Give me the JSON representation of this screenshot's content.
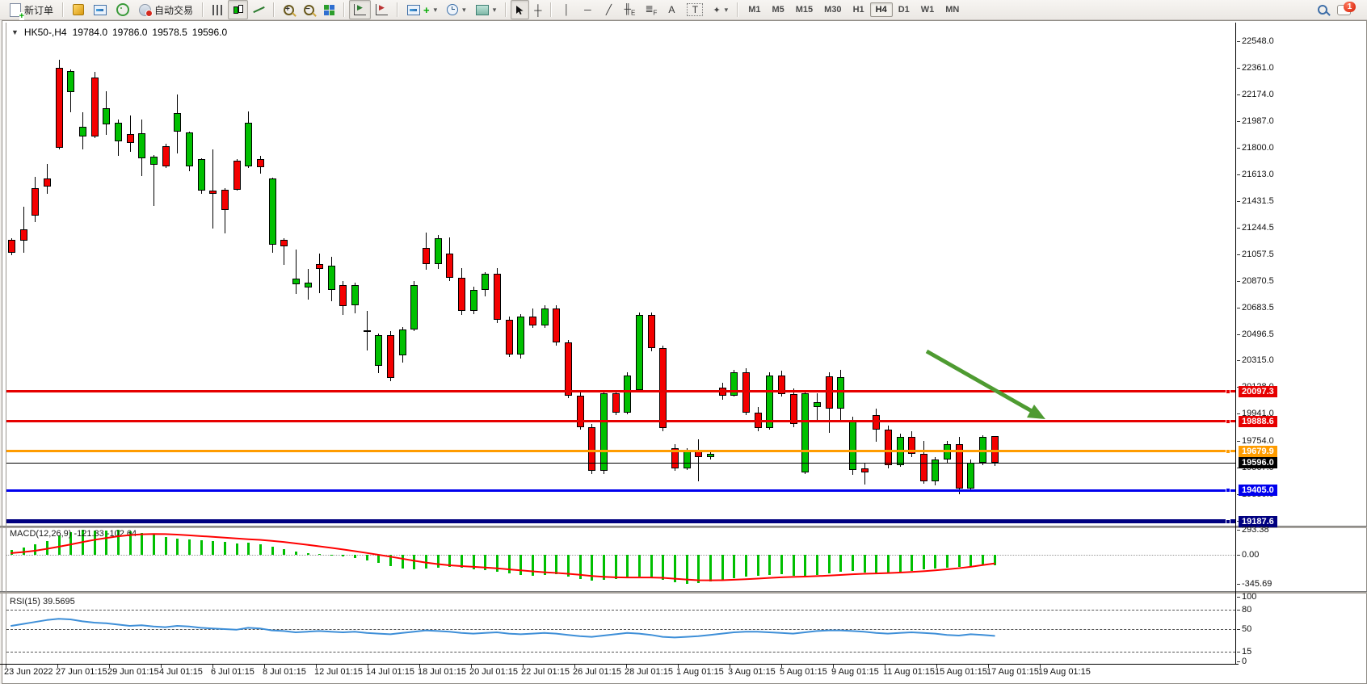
{
  "toolbar": {
    "new_order_label": "新订单",
    "autotrading_label": "自动交易",
    "timeframes": [
      "M1",
      "M5",
      "M15",
      "M30",
      "H1",
      "H4",
      "D1",
      "W1",
      "MN"
    ],
    "active_timeframe": "H4",
    "notification_badge": "1",
    "icons": [
      "new-order",
      "quotes-cube",
      "chart-window",
      "navigator",
      "autotrading-globe",
      "bar-chart-type",
      "candlestick-type",
      "line-chart-type",
      "zoom-in",
      "zoom-out",
      "tile-windows",
      "auto-scroll",
      "chart-shift",
      "add-indicator",
      "periods-clock",
      "templates",
      "cursor",
      "crosshair",
      "vertical-line",
      "horizontal-line",
      "trendline",
      "equidistant-channel",
      "fibonacci",
      "text",
      "text-label",
      "arrows",
      "search",
      "chat"
    ]
  },
  "chart": {
    "collapse_arrow": "▼",
    "symbol_period": "HK50-,H4",
    "open": "19784.0",
    "high": "19786.0",
    "low": "19578.5",
    "close": "19596.0"
  },
  "indicators": {
    "macd_label": "MACD(12,26,9)",
    "macd_value": "-121.33",
    "macd_signal_value": "-102.64",
    "rsi_label": "RSI(15)",
    "rsi_value": "39.5695"
  },
  "chart_data": {
    "type": "candlestick",
    "symbol": "HK50-",
    "period": "H4",
    "ylim": [
      19100,
      22640
    ],
    "grid": false,
    "price_axis_ticks": [
      "22548.0",
      "22361.0",
      "22174.0",
      "21987.0",
      "21800.0",
      "21613.0",
      "21431.5",
      "21244.5",
      "21057.5",
      "20870.5",
      "20683.5",
      "20496.5",
      "20315.0",
      "20128.0",
      "19941.0",
      "19754.0",
      "19567.0",
      "19380.0",
      "19193.0"
    ],
    "date_axis_ticks": [
      "23 Jun 2022",
      "27 Jun 01:15",
      "29 Jun 01:15",
      "4 Jul 01:15",
      "6 Jul 01:15",
      "8 Jul 01:15",
      "12 Jul 01:15",
      "14 Jul 01:15",
      "18 Jul 01:15",
      "20 Jul 01:15",
      "22 Jul 01:15",
      "26 Jul 01:15",
      "28 Jul 01:15",
      "1 Aug 01:15",
      "3 Aug 01:15",
      "5 Aug 01:15",
      "9 Aug 01:15",
      "11 Aug 01:15",
      "15 Aug 01:15",
      "17 Aug 01:15",
      "19 Aug 01:15"
    ],
    "horizontal_lines": [
      {
        "price": 20097.3,
        "label": "20097.3",
        "color": "#e60000",
        "thickness": 3
      },
      {
        "price": 19888.6,
        "label": "19888.6",
        "color": "#e60000",
        "thickness": 3
      },
      {
        "price": 19679.9,
        "label": "19679.9",
        "color": "#ff9c00",
        "thickness": 3
      },
      {
        "price": 19596.0,
        "label": "19596.0",
        "color": "#000000",
        "thickness": 1
      },
      {
        "price": 19405.0,
        "label": "19405.0",
        "color": "#0000ee",
        "thickness": 3
      },
      {
        "price": 19187.6,
        "label": "19187.6",
        "color": "#000080",
        "thickness": 5
      }
    ],
    "trend_arrow": {
      "color": "#4e9b31",
      "from_price": 20380,
      "to_price": 19940,
      "note": "down-sloping arrow over final candles"
    },
    "candles_ohlc": [
      [
        21160,
        21170,
        21050,
        21070
      ],
      [
        21230,
        21390,
        21065,
        21150
      ],
      [
        21520,
        21600,
        21280,
        21330
      ],
      [
        21585,
        21690,
        21480,
        21530
      ],
      [
        22360,
        22420,
        21790,
        21800
      ],
      [
        22190,
        22350,
        22050,
        22340
      ],
      [
        21880,
        22050,
        21790,
        21950
      ],
      [
        22295,
        22335,
        21870,
        21880
      ],
      [
        21965,
        22200,
        21895,
        22080
      ],
      [
        21845,
        22000,
        21745,
        21975
      ],
      [
        21900,
        22030,
        21775,
        21835
      ],
      [
        21730,
        22000,
        21605,
        21905
      ],
      [
        21685,
        21750,
        21395,
        21740
      ],
      [
        21815,
        21830,
        21660,
        21670
      ],
      [
        21915,
        22175,
        21765,
        22045
      ],
      [
        21670,
        21915,
        21640,
        21910
      ],
      [
        21500,
        21730,
        21480,
        21725
      ],
      [
        21505,
        21790,
        21240,
        21480
      ],
      [
        21510,
        21520,
        21205,
        21365
      ],
      [
        21710,
        21725,
        21500,
        21510
      ],
      [
        21670,
        22055,
        21660,
        21975
      ],
      [
        21725,
        21745,
        21620,
        21665
      ],
      [
        21125,
        21595,
        21070,
        21585
      ],
      [
        21160,
        21170,
        20985,
        21115
      ],
      [
        20845,
        21090,
        20780,
        20885
      ],
      [
        20825,
        20955,
        20740,
        20860
      ],
      [
        20990,
        21060,
        20785,
        20955
      ],
      [
        20805,
        21040,
        20730,
        20980
      ],
      [
        20840,
        20870,
        20630,
        20695
      ],
      [
        20700,
        20860,
        20645,
        20840
      ],
      [
        20520,
        20660,
        20385,
        20525
      ],
      [
        20275,
        20500,
        20225,
        20490
      ],
      [
        20490,
        20520,
        20170,
        20190
      ],
      [
        20350,
        20550,
        20300,
        20530
      ],
      [
        20530,
        20870,
        20520,
        20840
      ],
      [
        21100,
        21210,
        20950,
        20990
      ],
      [
        20990,
        21190,
        20955,
        21170
      ],
      [
        21060,
        21175,
        20870,
        20890
      ],
      [
        20890,
        20960,
        20630,
        20660
      ],
      [
        20660,
        20830,
        20640,
        20810
      ],
      [
        20810,
        20930,
        20760,
        20920
      ],
      [
        20920,
        20960,
        20575,
        20600
      ],
      [
        20600,
        20620,
        20340,
        20355
      ],
      [
        20355,
        20640,
        20330,
        20620
      ],
      [
        20620,
        20680,
        20540,
        20560
      ],
      [
        20560,
        20700,
        20545,
        20680
      ],
      [
        20680,
        20700,
        20420,
        20440
      ],
      [
        20440,
        20460,
        20050,
        20070
      ],
      [
        20070,
        20100,
        19830,
        19850
      ],
      [
        19850,
        19870,
        19520,
        19540
      ],
      [
        19540,
        20090,
        19520,
        20085
      ],
      [
        20085,
        20110,
        19930,
        19950
      ],
      [
        19950,
        20230,
        19940,
        20210
      ],
      [
        20110,
        20650,
        20100,
        20630
      ],
      [
        20630,
        20650,
        20380,
        20400
      ],
      [
        20400,
        20420,
        19820,
        19840
      ],
      [
        19700,
        19730,
        19540,
        19560
      ],
      [
        19560,
        19700,
        19545,
        19690
      ],
      [
        19690,
        19760,
        19470,
        19640
      ],
      [
        19640,
        19680,
        19620,
        19660
      ],
      [
        20125,
        20160,
        20040,
        20070
      ],
      [
        20070,
        20250,
        20060,
        20230
      ],
      [
        20230,
        20260,
        19930,
        19950
      ],
      [
        19950,
        19990,
        19820,
        19840
      ],
      [
        19840,
        20230,
        19830,
        20210
      ],
      [
        20210,
        20240,
        20060,
        20080
      ],
      [
        20080,
        20120,
        19850,
        19870
      ],
      [
        19530,
        20095,
        19520,
        20085
      ],
      [
        19990,
        20085,
        19900,
        20025
      ],
      [
        20205,
        20233,
        19805,
        19980
      ],
      [
        19980,
        20250,
        19880,
        20195
      ],
      [
        19545,
        19920,
        19515,
        19890
      ],
      [
        19560,
        19600,
        19445,
        19530
      ],
      [
        19930,
        19975,
        19745,
        19830
      ],
      [
        19830,
        19860,
        19560,
        19580
      ],
      [
        19580,
        19800,
        19570,
        19780
      ],
      [
        19780,
        19820,
        19640,
        19660
      ],
      [
        19660,
        19750,
        19450,
        19470
      ],
      [
        19470,
        19640,
        19440,
        19620
      ],
      [
        19620,
        19750,
        19600,
        19730
      ],
      [
        19730,
        19780,
        19380,
        19420
      ],
      [
        19420,
        19620,
        19400,
        19600
      ],
      [
        19600,
        19790,
        19580,
        19780
      ],
      [
        19784,
        19786,
        19578.5,
        19596
      ]
    ],
    "macd": {
      "params": "12,26,9",
      "axis_ticks": [
        "293.38",
        "0.00",
        "-345.69"
      ],
      "histogram": [
        55,
        85,
        125,
        165,
        225,
        265,
        293,
        288,
        283,
        293,
        278,
        258,
        238,
        210,
        195,
        185,
        172,
        160,
        150,
        132,
        140,
        120,
        92,
        62,
        42,
        22,
        10,
        2,
        -15,
        -40,
        -70,
        -100,
        -130,
        -158,
        -175,
        -162,
        -150,
        -140,
        -155,
        -170,
        -182,
        -200,
        -218,
        -234,
        -248,
        -240,
        -230,
        -258,
        -288,
        -308,
        -300,
        -282,
        -270,
        -256,
        -268,
        -298,
        -328,
        -345,
        -338,
        -318,
        -298,
        -280,
        -262,
        -250,
        -240,
        -232,
        -250,
        -262,
        -242,
        -222,
        -202,
        -192,
        -210,
        -220,
        -210,
        -196,
        -186,
        -176,
        -166,
        -152,
        -140,
        -130,
        -112,
        -121.33
      ],
      "signal": [
        20,
        32,
        48,
        70,
        95,
        122,
        150,
        176,
        198,
        218,
        232,
        242,
        246,
        244,
        238,
        230,
        221,
        212,
        203,
        193,
        184,
        176,
        165,
        151,
        135,
        118,
        100,
        82,
        63,
        43,
        22,
        0,
        -22,
        -46,
        -70,
        -92,
        -110,
        -124,
        -134,
        -142,
        -150,
        -160,
        -172,
        -184,
        -196,
        -206,
        -214,
        -224,
        -236,
        -250,
        -260,
        -266,
        -268,
        -268,
        -268,
        -272,
        -282,
        -292,
        -300,
        -302,
        -300,
        -295,
        -288,
        -281,
        -273,
        -266,
        -261,
        -257,
        -252,
        -246,
        -238,
        -230,
        -224,
        -220,
        -216,
        -210,
        -203,
        -194,
        -184,
        -172,
        -158,
        -142,
        -122,
        -102.64
      ]
    },
    "rsi": {
      "params": "15",
      "axis_ticks": [
        "100",
        "80",
        "50",
        "15",
        "0"
      ],
      "levels": [
        80,
        50,
        15
      ],
      "values": [
        55,
        58,
        61,
        64,
        66,
        65,
        62,
        60,
        59,
        57,
        55,
        56,
        54,
        53,
        55,
        54,
        52,
        51,
        50,
        49,
        52,
        51,
        48,
        47,
        45,
        46,
        47,
        46,
        45,
        46,
        44,
        43,
        42,
        44,
        46,
        48,
        47,
        46,
        44,
        43,
        44,
        45,
        43,
        42,
        43,
        44,
        43,
        41,
        39,
        38,
        40,
        42,
        44,
        43,
        41,
        38,
        37,
        38,
        39,
        41,
        43,
        45,
        46,
        46,
        45,
        44,
        43,
        45,
        47,
        48,
        48,
        47,
        46,
        44,
        43,
        44,
        45,
        44,
        43,
        41,
        40,
        42,
        41,
        39.57
      ]
    },
    "colors": {
      "up": "#00c000",
      "down": "#f40000",
      "wick": "#000000",
      "macd_hist": "#00bf00",
      "macd_signal": "#ff0000",
      "rsi_line": "#3e8fd8",
      "background": "#ffffff"
    }
  }
}
